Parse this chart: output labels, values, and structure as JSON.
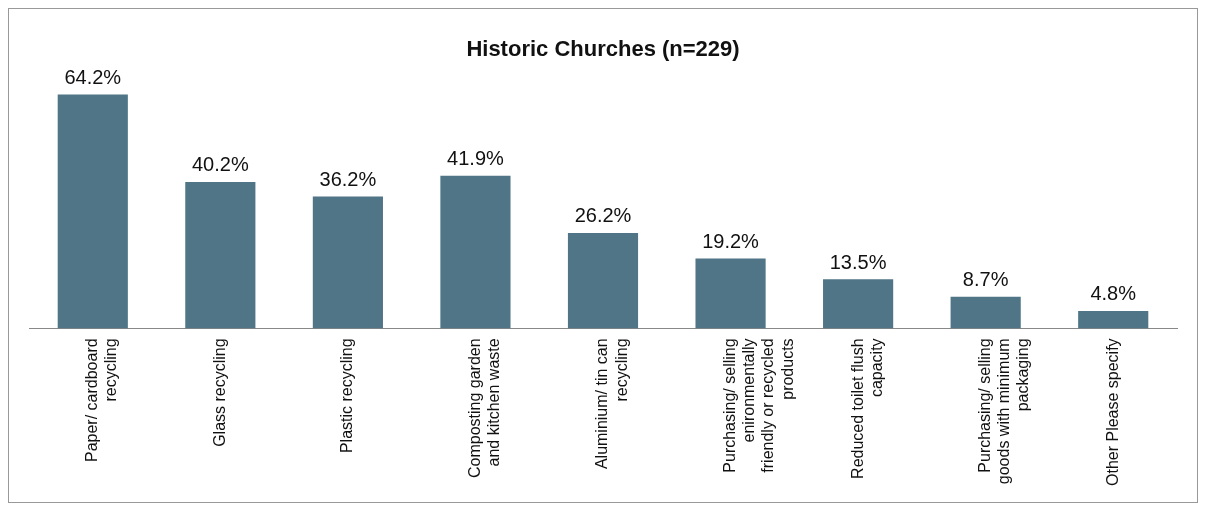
{
  "chart_data": {
    "type": "bar",
    "title": "Historic Churches (n=229)",
    "categories": [
      "Paper/ cardboard recycling",
      "Glass recycling",
      "Plastic recycling",
      "Composting garden and kitchen waste",
      "Aluminium/ tin can recycling",
      "Purchasing/ selling enironmentally friendly or recycled products",
      "Reduced toilet flush capacity",
      "Purchasing/ selling goods with minimum packaging",
      "Other Please specify"
    ],
    "values": [
      64.2,
      40.2,
      36.2,
      41.9,
      26.2,
      19.2,
      13.5,
      8.7,
      4.8
    ],
    "value_labels": [
      "64.2%",
      "40.2%",
      "36.2%",
      "41.9%",
      "26.2%",
      "19.2%",
      "13.5%",
      "8.7%",
      "4.8%"
    ],
    "color": "#4f7586",
    "grid": false,
    "legend": false
  }
}
